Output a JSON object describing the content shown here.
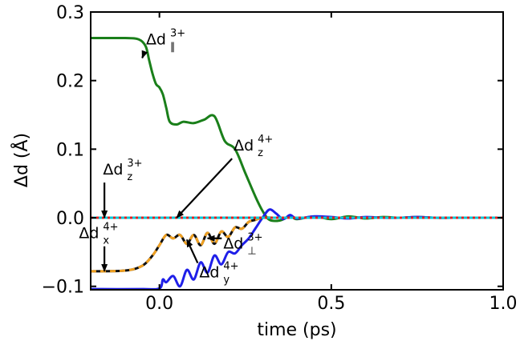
{
  "chart_data": {
    "type": "line",
    "title": "",
    "xlabel": "time (ps)",
    "ylabel": "Δd  (Å)",
    "xlim": [
      -0.2,
      1.0
    ],
    "ylim": [
      -0.105,
      0.3
    ],
    "xticks": [
      0.0,
      0.5,
      1.0
    ],
    "xtick_labels": [
      "0.0",
      "0.5",
      "1.0"
    ],
    "yticks": [
      -0.1,
      0.0,
      0.1,
      0.2,
      0.3
    ],
    "ytick_labels": [
      "−0.1",
      "0.0",
      "0.1",
      "0.2",
      "0.3"
    ],
    "grid": false,
    "legend": "none",
    "series": [
      {
        "color": "#1a7f1a",
        "style": "solid",
        "x": [
          -0.2,
          -0.1,
          -0.06,
          -0.04,
          -0.03,
          -0.02,
          -0.01,
          0.0,
          0.01,
          0.02,
          0.03,
          0.05,
          0.07,
          0.1,
          0.13,
          0.16,
          0.19,
          0.22,
          0.25,
          0.28,
          0.3,
          0.32,
          0.35,
          0.38,
          0.4,
          0.45,
          0.5,
          0.55,
          0.6,
          0.65,
          0.7,
          0.75,
          0.8,
          0.85,
          0.9,
          0.95,
          1.0
        ],
        "y": [
          0.262,
          0.262,
          0.26,
          0.25,
          0.23,
          0.21,
          0.195,
          0.19,
          0.18,
          0.16,
          0.14,
          0.136,
          0.14,
          0.138,
          0.143,
          0.148,
          0.112,
          0.1,
          0.065,
          0.03,
          0.01,
          -0.003,
          -0.004,
          0.002,
          -0.002,
          0.002,
          -0.002,
          0.002,
          -0.001,
          0.001,
          0.0,
          0.001,
          0.0,
          0.0,
          0.0,
          0.0,
          0.0
        ]
      },
      {
        "color": "#1f1fe8",
        "style": "solid",
        "x": [
          -0.2,
          -0.05,
          0.0,
          0.01,
          0.02,
          0.04,
          0.06,
          0.08,
          0.1,
          0.12,
          0.14,
          0.16,
          0.18,
          0.2,
          0.22,
          0.24,
          0.26,
          0.28,
          0.3,
          0.32,
          0.34,
          0.36,
          0.38,
          0.4,
          0.45,
          0.5,
          0.55,
          0.6,
          0.65,
          0.7,
          0.75,
          0.8,
          0.85,
          0.9,
          0.95,
          1.0
        ],
        "y": [
          -0.104,
          -0.104,
          -0.103,
          -0.09,
          -0.094,
          -0.085,
          -0.1,
          -0.076,
          -0.09,
          -0.065,
          -0.08,
          -0.055,
          -0.068,
          -0.05,
          -0.052,
          -0.04,
          -0.03,
          -0.015,
          0.0,
          0.012,
          0.006,
          -0.002,
          0.004,
          -0.001,
          0.002,
          0.001,
          -0.001,
          0.001,
          0.0,
          0.0,
          0.001,
          0.0,
          0.0,
          0.0,
          0.0,
          0.0
        ]
      },
      {
        "color": "#111111",
        "style": "solid",
        "x": [
          -0.2,
          -0.1,
          -0.05,
          -0.02,
          0.0,
          0.02,
          0.04,
          0.06,
          0.08,
          0.1,
          0.12,
          0.14,
          0.16,
          0.18,
          0.2,
          0.22,
          0.24,
          0.26,
          0.28,
          0.3,
          0.35,
          0.4,
          0.5,
          0.6,
          0.7,
          0.8,
          0.9,
          1.0
        ],
        "y": [
          -0.078,
          -0.077,
          -0.07,
          -0.055,
          -0.04,
          -0.025,
          -0.03,
          -0.025,
          -0.038,
          -0.025,
          -0.04,
          -0.022,
          -0.038,
          -0.02,
          -0.028,
          -0.014,
          -0.016,
          -0.006,
          -0.003,
          0.0,
          0.0,
          0.0,
          0.0,
          0.0,
          0.0,
          0.0,
          0.0,
          0.0
        ]
      },
      {
        "color": "#f0a020",
        "style": "dashed",
        "x": [
          -0.2,
          -0.1,
          -0.05,
          -0.02,
          0.0,
          0.02,
          0.04,
          0.06,
          0.08,
          0.1,
          0.12,
          0.14,
          0.16,
          0.18,
          0.2,
          0.22,
          0.24,
          0.26,
          0.28,
          0.3,
          0.35,
          0.4,
          0.5,
          0.6,
          0.7,
          0.8,
          0.9,
          1.0
        ],
        "y": [
          -0.078,
          -0.077,
          -0.07,
          -0.055,
          -0.04,
          -0.025,
          -0.03,
          -0.025,
          -0.038,
          -0.025,
          -0.04,
          -0.022,
          -0.038,
          -0.02,
          -0.028,
          -0.014,
          -0.016,
          -0.006,
          -0.003,
          0.0,
          0.0,
          0.0,
          0.0,
          0.0,
          0.0,
          0.0,
          0.0,
          0.0
        ]
      },
      {
        "color": "#00c8d8",
        "style": "solid",
        "x": [
          -0.2,
          1.0
        ],
        "y": [
          0.0,
          0.0
        ]
      },
      {
        "color": "#e02020",
        "style": "dotted",
        "x": [
          -0.2,
          1.0
        ],
        "y": [
          0.0,
          0.0
        ]
      }
    ],
    "annotations": [
      {
        "base": "Δd",
        "sup": "3+",
        "sub": "∥",
        "text_xy": [
          0.045,
          0.253
        ],
        "arrow_to": [
          -0.05,
          0.233
        ]
      },
      {
        "base": "Δd",
        "sup": "4+",
        "sub": "z",
        "text_xy": [
          0.3,
          0.098
        ],
        "arrow_to": [
          0.05,
          0.0
        ]
      },
      {
        "base": "Δd",
        "sup": "3+",
        "sub": "z",
        "text_xy": [
          -0.08,
          0.063
        ],
        "arrow_to": [
          -0.16,
          0.0
        ]
      },
      {
        "base": "Δd",
        "sup": "4+",
        "sub": "x",
        "text_xy": [
          -0.15,
          -0.03
        ],
        "arrow_to": [
          -0.16,
          -0.078
        ]
      },
      {
        "base": "Δd",
        "sup": "3+",
        "sub": "⊥",
        "text_xy": [
          0.27,
          -0.045
        ],
        "arrow_to": [
          0.14,
          -0.03
        ]
      },
      {
        "base": "Δd",
        "sup": "4+",
        "sub": "y",
        "text_xy": [
          0.2,
          -0.087
        ],
        "arrow_to": [
          0.08,
          -0.032
        ]
      }
    ]
  }
}
